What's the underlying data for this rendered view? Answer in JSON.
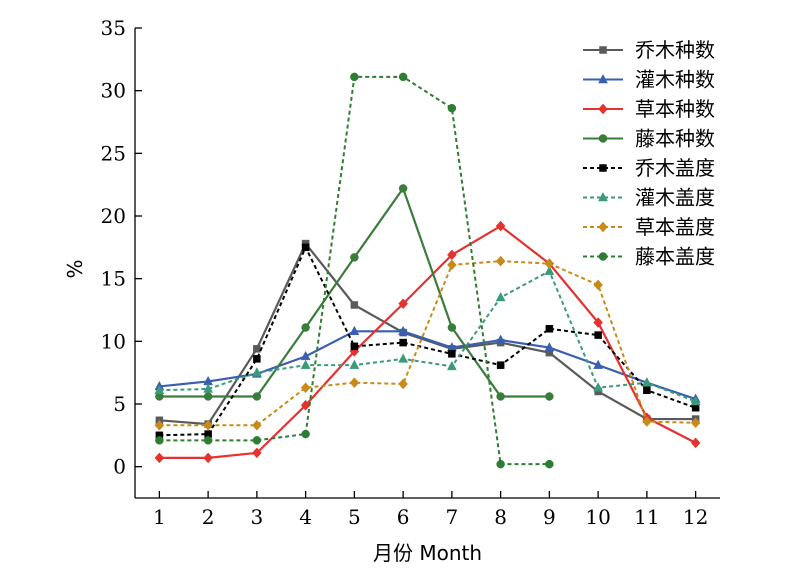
{
  "chart_data": {
    "type": "line",
    "xlabel": "月份 Month",
    "ylabel": "%",
    "xlim": [
      0.5,
      12.5
    ],
    "ylim": [
      -2.5,
      35
    ],
    "x_ticks": [
      1,
      2,
      3,
      4,
      5,
      6,
      7,
      8,
      9,
      10,
      11,
      12
    ],
    "y_ticks": [
      0,
      5,
      10,
      15,
      20,
      25,
      30,
      35
    ],
    "grid": false,
    "legend_position": "top-right",
    "series": [
      {
        "name": "乔木种数",
        "color": "#5a5a5a",
        "marker": "square",
        "dash": "solid",
        "points": [
          [
            1,
            3.7
          ],
          [
            2,
            3.4
          ],
          [
            3,
            9.4
          ],
          [
            4,
            17.8
          ],
          [
            5,
            12.9
          ],
          [
            6,
            10.7
          ],
          [
            7,
            9.4
          ],
          [
            8,
            9.9
          ],
          [
            9,
            9.1
          ],
          [
            10,
            6.0
          ],
          [
            11,
            3.8
          ],
          [
            12,
            3.8
          ]
        ]
      },
      {
        "name": "灌木种数",
        "color": "#3a5fb0",
        "marker": "triangle",
        "dash": "solid",
        "points": [
          [
            1,
            6.4
          ],
          [
            2,
            6.8
          ],
          [
            3,
            7.4
          ],
          [
            4,
            8.8
          ],
          [
            5,
            10.8
          ],
          [
            6,
            10.8
          ],
          [
            7,
            9.5
          ],
          [
            8,
            10.1
          ],
          [
            9,
            9.5
          ],
          [
            10,
            8.1
          ],
          [
            11,
            6.7
          ],
          [
            12,
            5.4
          ]
        ]
      },
      {
        "name": "草本种数",
        "color": "#e5312f",
        "marker": "diamond",
        "dash": "solid",
        "points": [
          [
            1,
            0.7
          ],
          [
            2,
            0.7
          ],
          [
            3,
            1.1
          ],
          [
            4,
            4.9
          ],
          [
            5,
            9.2
          ],
          [
            6,
            13.0
          ],
          [
            7,
            16.9
          ],
          [
            8,
            19.2
          ],
          [
            9,
            16.2
          ],
          [
            10,
            11.5
          ],
          [
            11,
            3.9
          ],
          [
            12,
            1.9
          ]
        ]
      },
      {
        "name": "藤本种数",
        "color": "#3a7d3a",
        "marker": "circle",
        "dash": "solid",
        "points": [
          [
            1,
            5.6
          ],
          [
            2,
            5.6
          ],
          [
            3,
            5.6
          ],
          [
            4,
            11.1
          ],
          [
            5,
            16.7
          ],
          [
            6,
            22.2
          ],
          [
            7,
            11.1
          ],
          [
            8,
            5.6
          ],
          [
            9,
            5.6
          ]
        ]
      },
      {
        "name": "乔木盖度",
        "color": "#000000",
        "marker": "square",
        "dash": "dashed",
        "points": [
          [
            1,
            2.5
          ],
          [
            2,
            2.6
          ],
          [
            3,
            8.6
          ],
          [
            4,
            17.5
          ],
          [
            5,
            9.6
          ],
          [
            6,
            9.9
          ],
          [
            7,
            9.0
          ],
          [
            8,
            8.1
          ],
          [
            9,
            11.0
          ],
          [
            10,
            10.5
          ],
          [
            11,
            6.1
          ],
          [
            12,
            4.7
          ]
        ]
      },
      {
        "name": "灌木盖度",
        "color": "#3a9a7a",
        "marker": "triangle",
        "dash": "dashed",
        "points": [
          [
            1,
            6.1
          ],
          [
            2,
            6.2
          ],
          [
            3,
            7.5
          ],
          [
            4,
            8.1
          ],
          [
            5,
            8.1
          ],
          [
            6,
            8.6
          ],
          [
            7,
            8.0
          ],
          [
            8,
            13.5
          ],
          [
            9,
            15.6
          ],
          [
            10,
            6.3
          ],
          [
            11,
            6.7
          ],
          [
            12,
            5.2
          ]
        ]
      },
      {
        "name": "草本盖度",
        "color": "#c88a1a",
        "marker": "diamond",
        "dash": "dashed",
        "points": [
          [
            1,
            3.3
          ],
          [
            2,
            3.3
          ],
          [
            3,
            3.3
          ],
          [
            4,
            6.3
          ],
          [
            5,
            6.7
          ],
          [
            6,
            6.6
          ],
          [
            7,
            16.1
          ],
          [
            8,
            16.4
          ],
          [
            9,
            16.2
          ],
          [
            10,
            14.5
          ],
          [
            11,
            3.6
          ],
          [
            12,
            3.5
          ]
        ]
      },
      {
        "name": "藤本盖度",
        "color": "#2e7d32",
        "marker": "circle",
        "dash": "dashed",
        "points": [
          [
            1,
            2.1
          ],
          [
            2,
            2.1
          ],
          [
            3,
            2.1
          ],
          [
            4,
            2.6
          ],
          [
            5,
            31.1
          ],
          [
            6,
            31.1
          ],
          [
            7,
            28.6
          ],
          [
            8,
            0.2
          ],
          [
            9,
            0.2
          ]
        ]
      }
    ]
  }
}
